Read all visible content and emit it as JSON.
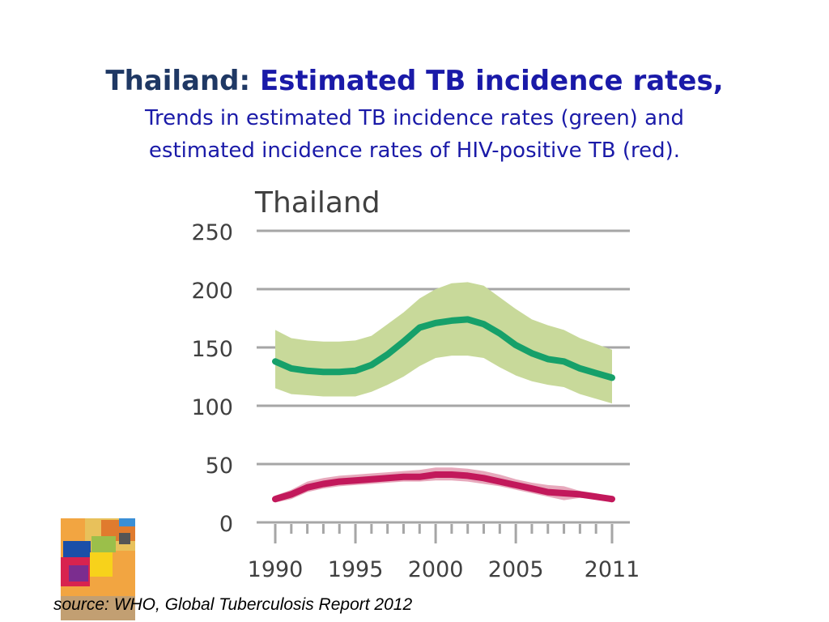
{
  "slide": {
    "title_country": "Thailand:",
    "title_main": "Estimated TB incidence rates,",
    "subtitle_line1": "Trends in estimated TB incidence rates (green) and",
    "subtitle_line2": "estimated incidence rates of HIV-positive TB (red).",
    "source": "source: WHO, Global Tuberculosis Report 2012"
  },
  "colors": {
    "title_dark": "#1f3864",
    "title_blue": "#1a1aa8",
    "tb_line": "#16a06a",
    "tb_band": "#c8d99a",
    "hiv_line": "#c2185b",
    "hiv_band": "#e39ab0",
    "grid": "#a6a6a6",
    "axis_text": "#404040"
  },
  "chart_data": {
    "type": "line",
    "title": "Thailand",
    "xlabel": "",
    "ylabel": "",
    "xlim": [
      1990,
      2011
    ],
    "ylim": [
      0,
      250
    ],
    "x_ticks": [
      1990,
      1995,
      2000,
      2005,
      2011
    ],
    "y_ticks": [
      0,
      50,
      100,
      150,
      200,
      250
    ],
    "grid": true,
    "x": [
      1990,
      1991,
      1992,
      1993,
      1994,
      1995,
      1996,
      1997,
      1998,
      1999,
      2000,
      2001,
      2002,
      2003,
      2004,
      2005,
      2006,
      2007,
      2008,
      2009,
      2010,
      2011
    ],
    "series": [
      {
        "color": "green",
        "values": [
          138,
          132,
          130,
          129,
          129,
          130,
          135,
          144,
          155,
          167,
          171,
          173,
          174,
          170,
          162,
          152,
          145,
          140,
          138,
          132,
          128,
          124
        ],
        "lower": [
          115,
          110,
          109,
          108,
          108,
          108,
          112,
          118,
          125,
          134,
          141,
          143,
          143,
          141,
          133,
          126,
          121,
          118,
          116,
          110,
          106,
          102
        ],
        "upper": [
          165,
          158,
          156,
          155,
          155,
          156,
          160,
          170,
          180,
          192,
          200,
          205,
          206,
          203,
          193,
          183,
          174,
          169,
          165,
          158,
          153,
          148
        ]
      },
      {
        "color": "red",
        "values": [
          20,
          24,
          30,
          33,
          35,
          36,
          37,
          38,
          39,
          39,
          41,
          41,
          40,
          38,
          35,
          32,
          29,
          26,
          25,
          24,
          22,
          20
        ],
        "lower": [
          17,
          20,
          26,
          29,
          31,
          32,
          33,
          34,
          35,
          35,
          36,
          36,
          35,
          33,
          31,
          28,
          25,
          22,
          19,
          21,
          20,
          17
        ],
        "upper": [
          23,
          28,
          35,
          38,
          40,
          41,
          42,
          43,
          44,
          45,
          47,
          47,
          46,
          44,
          41,
          37,
          34,
          32,
          31,
          27,
          25,
          22
        ]
      }
    ]
  }
}
